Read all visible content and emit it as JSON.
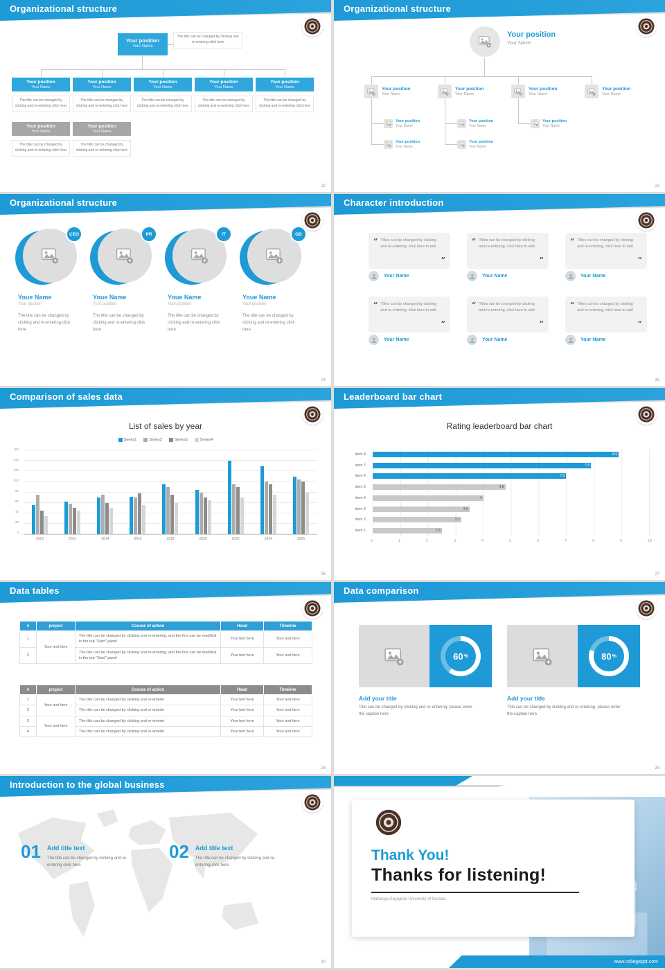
{
  "common": {
    "position": "Your position",
    "name": "Your Name",
    "placeholder": "The title can be changed by clicking and re-entering click here",
    "your_text": "Your text here"
  },
  "slides": {
    "org1": {
      "title": "Organizational structure",
      "page": "22"
    },
    "org2": {
      "title": "Organizational structure",
      "page": "23"
    },
    "org3": {
      "title": "Organizational structure",
      "page": "24",
      "name": "Youe Name",
      "roles": [
        "CEO",
        "PR",
        "IT",
        "GD"
      ]
    },
    "chars": {
      "title": "Character introduction",
      "page": "25",
      "open_quote": "“",
      "close_quote": "”",
      "quote": "Titles can be changed by clicking and re-entering, click here to add"
    },
    "sales": {
      "title": "Comparison of sales data",
      "page": "26"
    },
    "leader": {
      "title": "Leaderboard bar chart",
      "page": "27"
    },
    "tables": {
      "title": "Data tables",
      "page": "28",
      "columns": [
        "#",
        "project",
        "Course of action",
        "Head",
        "Timeline"
      ],
      "long_text": "The title can be changed by clicking and re-entering, and the font can be modified in the top \"Start\" panel",
      "short_text": "The title can be changed by clicking and re-enterin",
      "rows1": [
        "1",
        "2"
      ],
      "rows2": [
        "1",
        "2",
        "3",
        "4"
      ]
    },
    "compare": {
      "title": "Data comparison",
      "page": "29",
      "add_title": "Add your title",
      "caption": "Title can be changed by clicking and re-entering, please enter the caption here",
      "pct": [
        "60",
        "80"
      ],
      "pct_suffix": "%"
    },
    "global": {
      "title": "Introduction to the global business",
      "page": "30",
      "items": [
        {
          "num": "01",
          "title": "Add title text"
        },
        {
          "num": "02",
          "title": "Add title text"
        }
      ]
    },
    "thanks": {
      "title_line1": "Thank You!",
      "title_line2": "Thanks for listening!",
      "school": "Maharaja Sayajirao University of Baroda",
      "url": "www.collegeppt.com"
    }
  },
  "chart_data": [
    {
      "type": "bar",
      "title": "List of sales by year",
      "categories": [
        "2010",
        "2012",
        "2014",
        "2016",
        "2018",
        "2020",
        "2022",
        "2024",
        "2026"
      ],
      "series": [
        {
          "name": "Series1",
          "color": "#1E9AD6",
          "values": [
            55,
            62,
            70,
            72,
            95,
            85,
            140,
            130,
            110
          ]
        },
        {
          "name": "Series2",
          "color": "#ADADAD",
          "values": [
            75,
            58,
            75,
            70,
            90,
            80,
            95,
            100,
            105
          ]
        },
        {
          "name": "Series3",
          "color": "#8C8C8C",
          "values": [
            45,
            50,
            60,
            78,
            75,
            70,
            90,
            95,
            100
          ]
        },
        {
          "name": "Series4",
          "color": "#D6D6D6",
          "values": [
            35,
            45,
            50,
            55,
            60,
            65,
            70,
            75,
            80
          ]
        }
      ],
      "ylim": [
        0,
        160
      ],
      "yticks": [
        0,
        20,
        40,
        60,
        80,
        100,
        120,
        140,
        160
      ],
      "grid": true,
      "legend_position": "top"
    },
    {
      "type": "bar",
      "orientation": "horizontal",
      "title": "Rating leaderboard bar chart",
      "categories": [
        "item 1",
        "item 2",
        "item 3",
        "item 4",
        "item 5",
        "item 6",
        "item 7",
        "item 8"
      ],
      "values": [
        2.5,
        3.2,
        3.5,
        4,
        4.8,
        7.0,
        7.9,
        8.9
      ],
      "labels": [
        "2.5",
        "3.2",
        "3.5",
        "4",
        "4.8",
        "7.0",
        "7.9",
        "8.9"
      ],
      "xlim": [
        0,
        10
      ],
      "xticks": [
        0,
        1,
        2,
        3,
        4,
        5,
        6,
        7,
        8,
        9,
        10
      ],
      "highlight_color": "#1E9AD6",
      "bar_color": "#C9C9C9",
      "highlight_top_n": 3
    },
    {
      "type": "donut",
      "percent": 60,
      "label": "60%"
    },
    {
      "type": "donut",
      "percent": 80,
      "label": "80%"
    }
  ],
  "colors": {
    "accent": "#1E9AD6",
    "box_blue": "#2FA7DC",
    "box_gray": "#A6A6A6",
    "table_header_blue": "#2F9FD8",
    "table_header_gray": "#8C8C8C"
  }
}
